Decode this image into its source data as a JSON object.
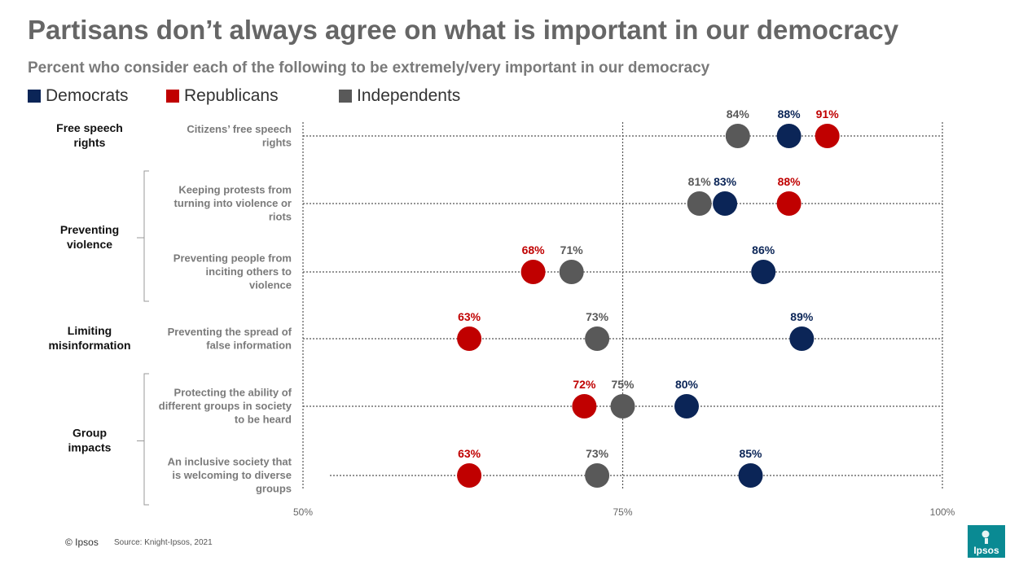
{
  "title": "Partisans don’t always agree on what is important in our democracy",
  "subtitle": "Percent who consider each of the following to be extremely/very important in our democracy",
  "legend": [
    {
      "name": "Democrats",
      "color": "#0b2557"
    },
    {
      "name": "Republicans",
      "color": "#c00000"
    },
    {
      "name": "Independents",
      "color": "#595959"
    }
  ],
  "chart_data": {
    "type": "scatter",
    "title": "Partisans don’t always agree on what is important in our democracy",
    "xlim": [
      50,
      100
    ],
    "xticks": [
      50,
      75,
      100
    ],
    "xtick_labels": [
      "50%",
      "75%",
      "100%"
    ],
    "series_names": [
      "Democrats",
      "Republicans",
      "Independents"
    ],
    "groups": [
      {
        "label": [
          "Free speech",
          "rights"
        ],
        "items": [
          0
        ]
      },
      {
        "label": [
          "Preventing",
          "violence"
        ],
        "items": [
          1,
          2
        ]
      },
      {
        "label": [
          "Limiting",
          "misinformation"
        ],
        "items": [
          3
        ]
      },
      {
        "label": [
          "Group",
          "impacts"
        ],
        "items": [
          4,
          5
        ]
      }
    ],
    "items": [
      {
        "label": [
          "Citizens’ free speech",
          "rights"
        ],
        "Democrats": 88,
        "Republicans": 91,
        "Independents": 84
      },
      {
        "label": [
          "Keeping protests from",
          "turning into violence or",
          "riots"
        ],
        "Democrats": 83,
        "Republicans": 88,
        "Independents": 81
      },
      {
        "label": [
          "Preventing people from",
          "inciting others to",
          "violence"
        ],
        "Democrats": 86,
        "Republicans": 68,
        "Independents": 71
      },
      {
        "label": [
          "Preventing the spread of",
          "false information"
        ],
        "Democrats": 89,
        "Republicans": 63,
        "Independents": 73
      },
      {
        "label": [
          "Protecting the ability of",
          "different groups in society",
          "to be heard"
        ],
        "Democrats": 80,
        "Republicans": 72,
        "Independents": 75
      },
      {
        "label": [
          "An inclusive society that",
          "is welcoming to diverse",
          "groups"
        ],
        "Democrats": 85,
        "Republicans": 63,
        "Independents": 73
      }
    ]
  },
  "footer": {
    "copyright": "© Ipsos",
    "source": "Source: Knight-Ipsos, 2021",
    "logo_text": "Ipsos"
  }
}
